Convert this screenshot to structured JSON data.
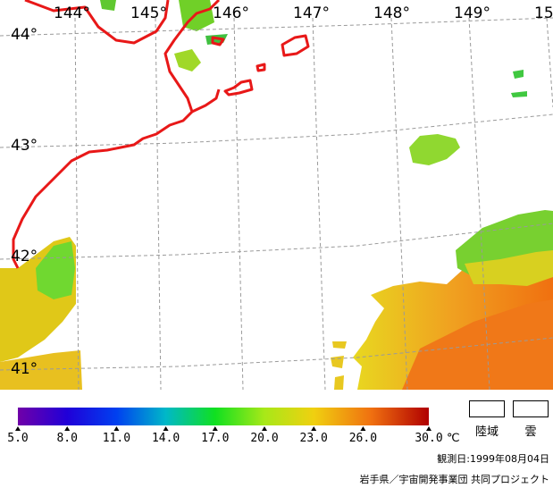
{
  "map": {
    "longitude_labels": [
      "144°",
      "145°",
      "146°",
      "147°",
      "148°",
      "149°",
      "15"
    ],
    "latitude_labels": [
      "44°",
      "43°",
      "42°",
      "41°"
    ],
    "colors": {
      "coast": "#e81818",
      "grid": "#9a9a9a",
      "land_fill": "#ffffff",
      "cloud_fill": "#ffffff"
    }
  },
  "colorbar": {
    "ticks": [
      "5.0",
      "8.0",
      "11.0",
      "14.0",
      "17.0",
      "20.0",
      "23.0",
      "26.0",
      "30.0"
    ],
    "unit": "℃",
    "range": [
      5.0,
      30.0
    ],
    "colors": [
      "#7000a8",
      "#2000d8",
      "#0040f0",
      "#00b8c8",
      "#10e020",
      "#a8e818",
      "#f0d010",
      "#f07010",
      "#b00000"
    ]
  },
  "legend": {
    "land_label": "陸域",
    "cloud_label": "雲"
  },
  "footer": {
    "observation_date": "観測日:1999年08月04日",
    "credit": "岩手県／宇宙開発事業団 共同プロジェクト"
  }
}
